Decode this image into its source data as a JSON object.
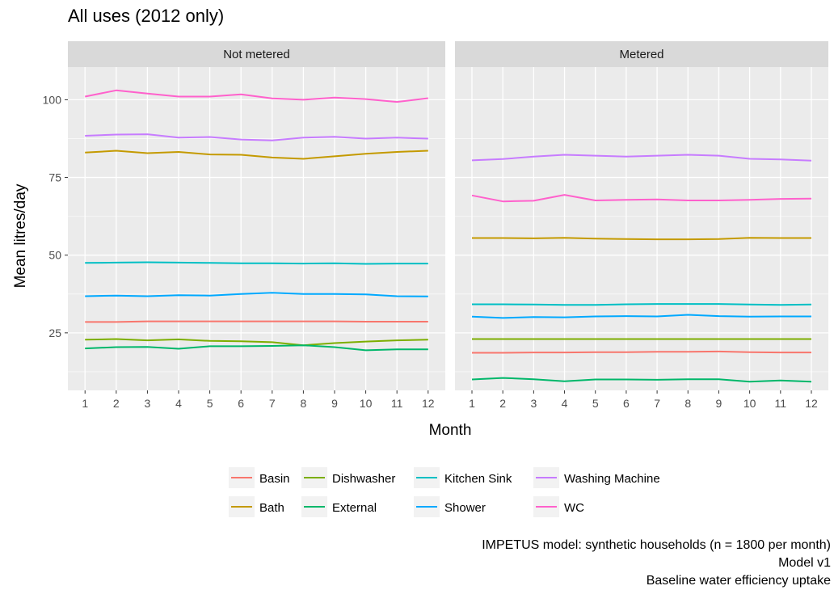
{
  "chart_data": {
    "type": "line",
    "title": "All uses (2012 only)",
    "xlabel": "Month",
    "ylabel": "Mean litres/day",
    "x": [
      1,
      2,
      3,
      4,
      5,
      6,
      7,
      8,
      9,
      10,
      11,
      12
    ],
    "x_ticks": [
      "1",
      "2",
      "3",
      "4",
      "5",
      "6",
      "7",
      "8",
      "9",
      "10",
      "11",
      "12"
    ],
    "y_ticks": [
      25,
      50,
      75,
      100
    ],
    "ylim": [
      6.5,
      110.5
    ],
    "xlim": [
      0.45,
      12.55
    ],
    "grid": true,
    "legend_position": "bottom",
    "legend_items": [
      "Basin",
      "Dishwasher",
      "Kitchen Sink",
      "Washing Machine",
      "Bath",
      "External",
      "Shower",
      "WC"
    ],
    "panels": [
      {
        "label": "Not metered",
        "series": [
          {
            "name": "Basin",
            "color": "#F8766D",
            "values": [
              28.5,
              28.5,
              28.7,
              28.7,
              28.7,
              28.7,
              28.7,
              28.7,
              28.7,
              28.6,
              28.6,
              28.6
            ]
          },
          {
            "name": "Bath",
            "color": "#C49A00",
            "values": [
              83.0,
              83.6,
              82.8,
              83.2,
              82.4,
              82.3,
              81.4,
              81.0,
              81.8,
              82.6,
              83.2,
              83.6
            ]
          },
          {
            "name": "Dishwasher",
            "color": "#7CAE00",
            "values": [
              22.8,
              23.0,
              22.6,
              22.9,
              22.4,
              22.3,
              22.0,
              21.0,
              21.7,
              22.2,
              22.6,
              22.8
            ]
          },
          {
            "name": "External",
            "color": "#00B76A",
            "values": [
              20.0,
              20.4,
              20.5,
              19.9,
              20.7,
              20.7,
              20.8,
              21.0,
              20.4,
              19.4,
              19.7,
              19.7
            ]
          },
          {
            "name": "Kitchen Sink",
            "color": "#00BFC4",
            "values": [
              47.5,
              47.6,
              47.7,
              47.6,
              47.5,
              47.4,
              47.4,
              47.3,
              47.4,
              47.2,
              47.3,
              47.3
            ]
          },
          {
            "name": "Shower",
            "color": "#00A9FF",
            "values": [
              36.8,
              37.0,
              36.8,
              37.1,
              37.0,
              37.5,
              37.9,
              37.5,
              37.5,
              37.4,
              36.8,
              36.7
            ]
          },
          {
            "name": "Washing Machine",
            "color": "#C77CFF",
            "values": [
              88.4,
              88.8,
              88.9,
              87.8,
              88.0,
              87.2,
              86.9,
              87.8,
              88.1,
              87.5,
              87.8,
              87.5
            ]
          },
          {
            "name": "WC",
            "color": "#FF61CC",
            "values": [
              101.0,
              103.0,
              102.0,
              101.0,
              101.0,
              101.7,
              100.4,
              100.0,
              100.7,
              100.2,
              99.3,
              100.5
            ]
          }
        ]
      },
      {
        "label": "Metered",
        "series": [
          {
            "name": "Basin",
            "color": "#F8766D",
            "values": [
              18.6,
              18.6,
              18.7,
              18.7,
              18.8,
              18.8,
              18.9,
              18.9,
              19.0,
              18.8,
              18.7,
              18.7
            ]
          },
          {
            "name": "Bath",
            "color": "#C49A00",
            "values": [
              55.5,
              55.5,
              55.4,
              55.6,
              55.3,
              55.2,
              55.1,
              55.1,
              55.2,
              55.6,
              55.5,
              55.5
            ]
          },
          {
            "name": "Dishwasher",
            "color": "#7CAE00",
            "values": [
              23.0,
              23.0,
              23.0,
              23.0,
              23.0,
              23.0,
              23.0,
              23.0,
              23.0,
              23.0,
              23.0,
              23.0
            ]
          },
          {
            "name": "External",
            "color": "#00B76A",
            "values": [
              10.0,
              10.5,
              10.1,
              9.4,
              10.0,
              10.0,
              9.9,
              10.1,
              10.1,
              9.3,
              9.7,
              9.3
            ]
          },
          {
            "name": "Kitchen Sink",
            "color": "#00BFC4",
            "values": [
              34.2,
              34.2,
              34.1,
              34.0,
              34.0,
              34.2,
              34.3,
              34.3,
              34.3,
              34.1,
              34.0,
              34.1
            ]
          },
          {
            "name": "Shower",
            "color": "#00A9FF",
            "values": [
              30.2,
              29.8,
              30.1,
              30.0,
              30.3,
              30.4,
              30.3,
              30.8,
              30.4,
              30.2,
              30.3,
              30.3
            ]
          },
          {
            "name": "Washing Machine",
            "color": "#C77CFF",
            "values": [
              80.5,
              80.9,
              81.7,
              82.3,
              82.0,
              81.7,
              82.0,
              82.3,
              82.0,
              81.0,
              80.8,
              80.4
            ]
          },
          {
            "name": "WC",
            "color": "#FF61CC",
            "values": [
              69.2,
              67.3,
              67.5,
              69.4,
              67.6,
              67.8,
              67.9,
              67.6,
              67.6,
              67.8,
              68.1,
              68.2
            ]
          }
        ]
      }
    ],
    "caption": [
      "IMPETUS model: synthetic households (n = 1800 per month)",
      "Model v1",
      "Baseline water efficiency uptake"
    ]
  }
}
